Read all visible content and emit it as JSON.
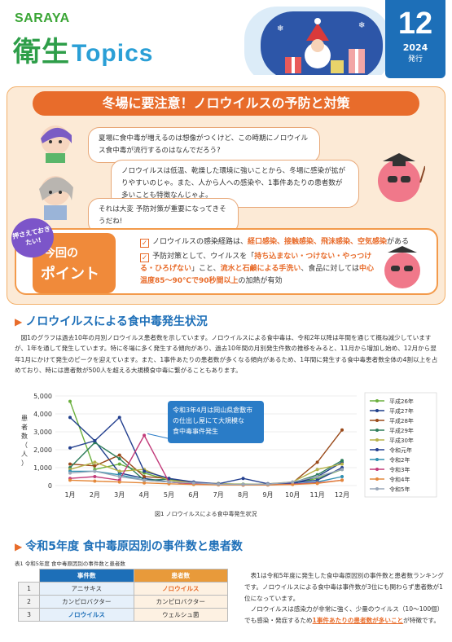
{
  "header": {
    "brand": "SARAYA",
    "logo_kanji": "衛生",
    "logo_topics": "Topics",
    "issue_number": "12",
    "issue_year": "2024",
    "issue_label": "発行"
  },
  "banner": {
    "title": "冬場に要注意！ノロウイルスの予防と対策",
    "bubble1": "夏場に食中毒が増えるのは想像がつくけど、この時期にノロウイルス食中毒が流行するのはなんでだろう?",
    "bubble2": "ノロウイルスは低温、乾燥した環境に強いことから、冬場に感染が拡がりやすいのじゃ。また、人から人への感染や、1事件あたりの患者数が多いことも特徴なんじゃよ。",
    "bubble3": "それは大変 予防対策が重要になってきそうだね!",
    "stamp": "押さえておきたい!",
    "point_label_a": "今回の",
    "point_label_b": "ポイント",
    "point1_pre": "ノロウイルスの感染経路は、",
    "point1_hl": "経口感染、接触感染、飛沫感染、空気感染",
    "point1_post": "がある",
    "point2_pre": "予防対策として、ウイルスを「",
    "point2_hl1": "持ち込まない・つけない・やっつける・ひろげない",
    "point2_mid": "」こと、",
    "point2_hl2": "流水と石鹸による手洗い",
    "point2_mid2": "、食品に対しては",
    "point2_hl3": "中心温度85〜90℃で90秒間以上",
    "point2_post": "の加熱が有効"
  },
  "section1": {
    "title": "ノロウイルスによる食中毒発生状況",
    "body": "図1のグラフは過去10年の月別ノロウイルス患者数を示しています。ノロウイルスによる食中毒は、令和2年以降は年間を通じて概ね減少していますが、1年を通して発生しています。特に冬場に多く発生する傾向があり、過去10年間の月別発生件数の推移をみると、11月から増加し始め、12月から翌年1月にかけて発生のピークを迎えています。また、1事件あたりの患者数が多くなる傾向があるため、1年間に発生する食中毒患者数全体の4割以上を占めており、時には患者数が500人を超える大規模食中毒に繋がることもあります。",
    "caption": "図1 ノロウイルスによる食中毒発生状況"
  },
  "chart_data": {
    "type": "line",
    "ylabel": "患者数（人）",
    "ylim": [
      0,
      5000
    ],
    "yticks": [
      "0",
      "1,000",
      "2,000",
      "3,000",
      "4,000",
      "5,000"
    ],
    "categories": [
      "1月",
      "2月",
      "3月",
      "4月",
      "5月",
      "6月",
      "7月",
      "8月",
      "9月",
      "10月",
      "11月",
      "12月"
    ],
    "annotation": "令和3年4月は岡山県倉敷市の仕出し屋にて大規模な食中毒事件発生",
    "legend_position": "right",
    "series": [
      {
        "name": "平成26年",
        "color": "#6aaf3d",
        "values": [
          4700,
          900,
          1200,
          700,
          300,
          150,
          100,
          80,
          60,
          120,
          400,
          900
        ]
      },
      {
        "name": "平成27年",
        "color": "#1f3f8a",
        "values": [
          3800,
          2500,
          700,
          400,
          200,
          100,
          80,
          60,
          80,
          100,
          500,
          1300
        ]
      },
      {
        "name": "平成28年",
        "color": "#9a4a1a",
        "values": [
          1200,
          1100,
          1700,
          500,
          400,
          150,
          80,
          50,
          80,
          150,
          1300,
          3100
        ]
      },
      {
        "name": "平成29年",
        "color": "#2e7d5a",
        "values": [
          1000,
          2400,
          1500,
          300,
          350,
          100,
          60,
          40,
          60,
          150,
          600,
          1400
        ]
      },
      {
        "name": "平成30年",
        "color": "#b7b24a",
        "values": [
          900,
          1300,
          800,
          900,
          300,
          150,
          120,
          60,
          100,
          200,
          900,
          1200
        ]
      },
      {
        "name": "令和元年",
        "color": "#24408f",
        "values": [
          2100,
          2500,
          3800,
          800,
          400,
          200,
          100,
          400,
          100,
          150,
          300,
          1000
        ]
      },
      {
        "name": "令和2年",
        "color": "#2f8fb0",
        "values": [
          800,
          800,
          600,
          300,
          200,
          100,
          60,
          40,
          40,
          80,
          200,
          500
        ]
      },
      {
        "name": "令和3年",
        "color": "#c23b7a",
        "values": [
          400,
          500,
          300,
          2800,
          200,
          100,
          50,
          30,
          40,
          80,
          150,
          300
        ]
      },
      {
        "name": "令和4年",
        "color": "#e4883a",
        "values": [
          300,
          250,
          200,
          150,
          100,
          60,
          40,
          30,
          40,
          60,
          120,
          300
        ]
      },
      {
        "name": "令和5年",
        "color": "#9aa7b8",
        "values": [
          700,
          800,
          500,
          300,
          200,
          150,
          80,
          60,
          80,
          200,
          500,
          900
        ]
      }
    ]
  },
  "section2": {
    "title": "令和5年度 食中毒原因別の事件数と患者数",
    "table_caption": "表1 令和5年度 食中毒原因別の事件数と患者数",
    "headers": [
      "事件数",
      "患者数"
    ],
    "rows": [
      [
        "1",
        "アニサキス",
        "ノロウイルス"
      ],
      [
        "2",
        "カンピロバクター",
        "カンピロバクター"
      ],
      [
        "3",
        "ノロウイルス",
        "ウェルシュ菌"
      ]
    ],
    "body1": "表1は令和5年度に発生した食中毒原因別の事件数と患者数ランキングです。ノロウイルスによる食中毒は事件数が3位にも関わらず患者数が1位になっています。",
    "body2_pre": "ノロウイルスは感染力が非常に強く、少量のウイルス（10〜100個）でも感染・発症するため",
    "body2_hl": "1事件あたりの患者数が多いこと",
    "body2_post": "が特徴です。"
  }
}
